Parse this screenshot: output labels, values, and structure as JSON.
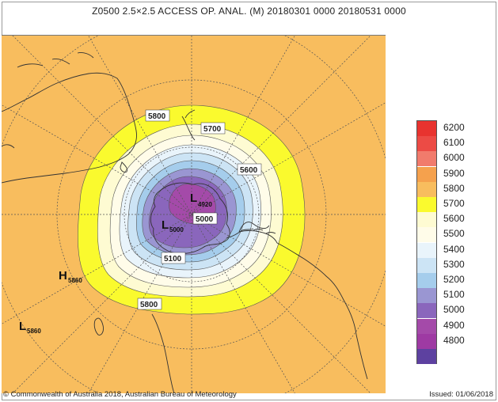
{
  "title": "Z0500  2.5×2.5 ACCESS OP. ANAL.  (M)  20180301 0000 20180531 0000",
  "copyright": "© Commonwealth of Australia 2018, Australian Bureau of Meteorology",
  "issued": "Issued: 01/06/2018",
  "colors": {
    "background": "#f8bd5e",
    "land_outline": "#333333"
  },
  "legend": {
    "levels": [
      {
        "label": "6200",
        "color": "#e8332f"
      },
      {
        "label": "6100",
        "color": "#ec4b45"
      },
      {
        "label": "6000",
        "color": "#f17b6c"
      },
      {
        "label": "5900",
        "color": "#f5a14d"
      },
      {
        "label": "5800",
        "color": "#f8bd5e"
      },
      {
        "label": "5700",
        "color": "#fafa2e"
      },
      {
        "label": "5600",
        "color": "#fefbd2"
      },
      {
        "label": "5500",
        "color": "#fffce9"
      },
      {
        "label": "5400",
        "color": "#e9f4fb"
      },
      {
        "label": "5300",
        "color": "#cce4f5"
      },
      {
        "label": "5200",
        "color": "#a5cdec"
      },
      {
        "label": "5100",
        "color": "#9a96d2"
      },
      {
        "label": "5000",
        "color": "#8a66bc"
      },
      {
        "label": "4900",
        "color": "#a44aa9"
      },
      {
        "label": "4800",
        "color": "#9e3aa3"
      },
      {
        "label": "",
        "color": "#5d41a0"
      }
    ]
  },
  "contour_labels": {
    "c5800_top": "5800",
    "c5700": "5700",
    "c5600": "5600",
    "c5000": "5000",
    "c5100": "5100",
    "c5800_bottom": "5800"
  },
  "systems": {
    "low_centre_letter": "L",
    "low_centre_value": "4920",
    "low_west_letter": "L",
    "low_west_value": "5000",
    "high_letter": "H",
    "high_value": "5860",
    "low_sw_letter": "L",
    "low_sw_value": "5860"
  }
}
